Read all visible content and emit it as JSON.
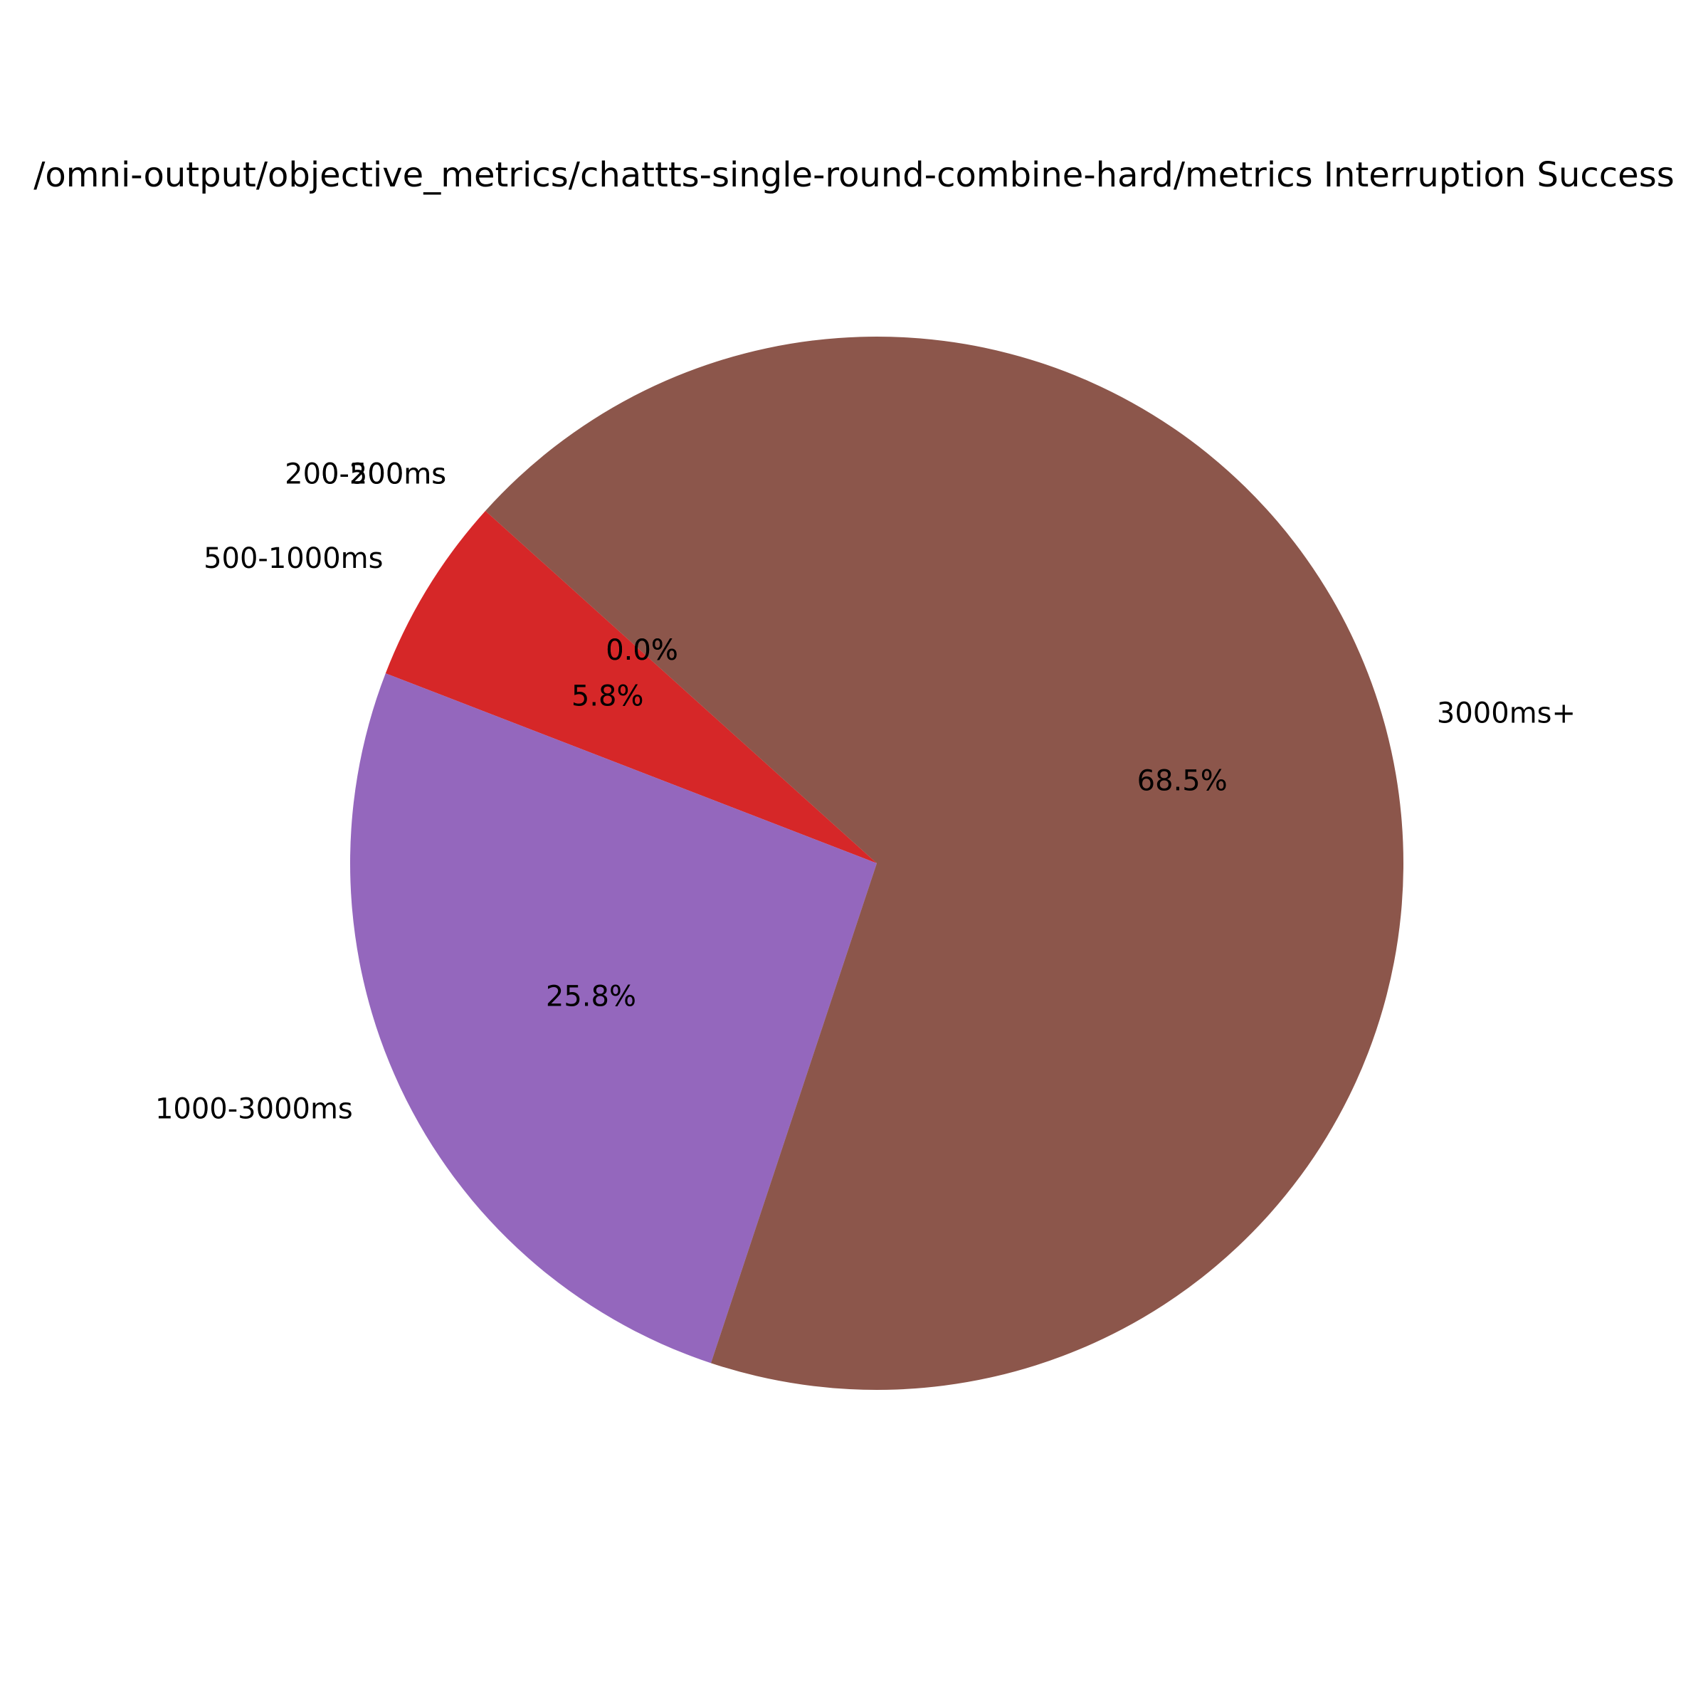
{
  "chart_data": {
    "type": "pie",
    "title": "/omni-output/objective_metrics/chattts-single-round-combine-hard/metrics Interruption Success",
    "categories": [
      "0-200ms",
      "200-500ms",
      "500-1000ms",
      "1000-3000ms",
      "3000ms+"
    ],
    "values": [
      0.0,
      0.0,
      5.8,
      25.8,
      68.5
    ],
    "labels": [
      "0.0%",
      "0.0%",
      "5.8%",
      "25.8%",
      "68.5%"
    ],
    "colors": [
      "#1f77b4",
      "#ff7f0e",
      "#d62728",
      "#9467bd",
      "#8c564b"
    ],
    "start_angle_deg": 138,
    "direction": "counterclockwise"
  }
}
